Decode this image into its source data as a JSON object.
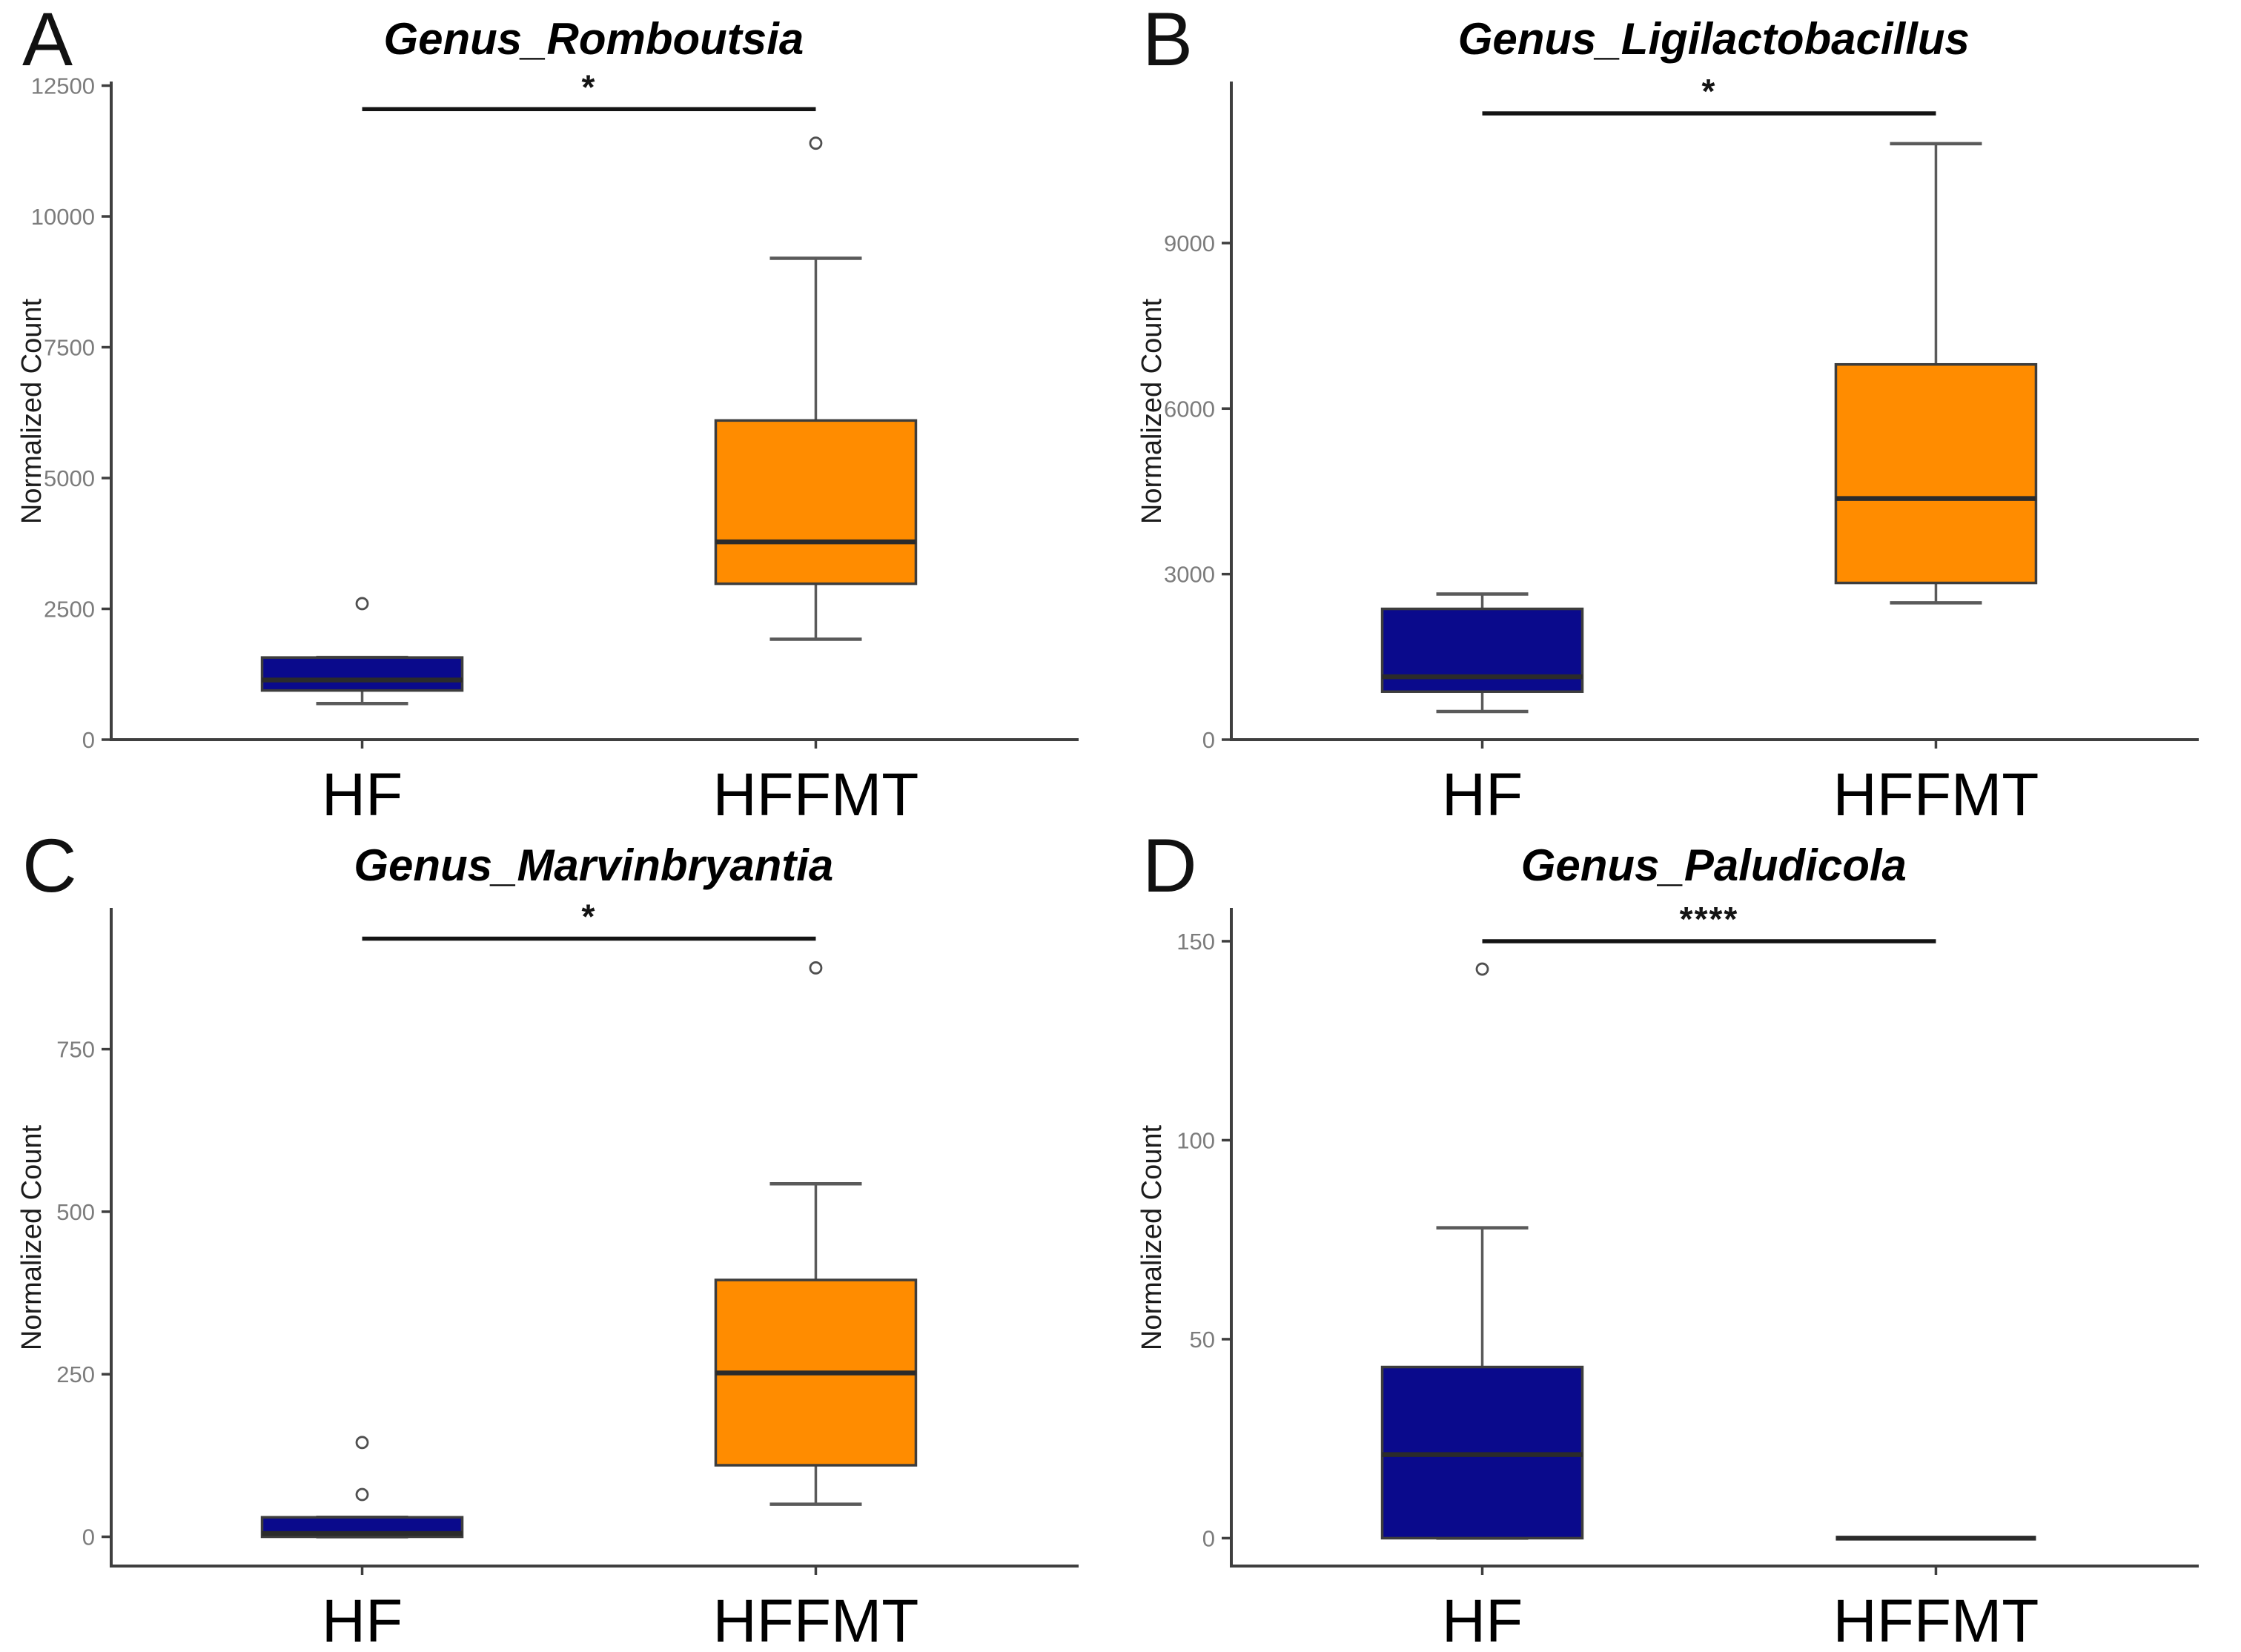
{
  "figure": {
    "ylabel": "Normalized Count",
    "categories": [
      "HF",
      "HFFMT"
    ],
    "style": {
      "hf_color": "#0A0A8C",
      "hffmt_color": "#FF8C00",
      "axis_color": "#3F3F3F",
      "tick_label_color": "#7C7C7C",
      "text_color": "#000000",
      "median_color": "#2B2B2B",
      "whisker_color": "#5A5A5A",
      "outlier_color": "#4F4F4F",
      "sig_color": "#141414"
    }
  },
  "chart_data": [
    {
      "panel": "A",
      "type": "box",
      "title": "Genus_Romboutsia",
      "ylabel": "Normalized Count",
      "xlabel": "",
      "categories": [
        "HF",
        "HFFMT"
      ],
      "yticks": [
        0,
        2500,
        5000,
        7500,
        10000,
        12500
      ],
      "ylim": [
        0,
        12550
      ],
      "legend": "none",
      "grid": false,
      "significance": {
        "label": "*",
        "bar_y": 12050
      },
      "series": [
        {
          "name": "HF",
          "color": "#0A0A8C",
          "whisker_low": 690,
          "q1": 940,
          "median": 1140,
          "q3": 1570,
          "whisker_high": 1570,
          "outliers": [
            2600
          ]
        },
        {
          "name": "HFFMT",
          "color": "#FF8C00",
          "whisker_low": 1920,
          "q1": 2980,
          "median": 3780,
          "q3": 6100,
          "whisker_high": 9200,
          "outliers": [
            11400
          ]
        }
      ]
    },
    {
      "panel": "B",
      "type": "box",
      "title": "Genus_Ligilactobacillus",
      "ylabel": "Normalized Count",
      "xlabel": "",
      "categories": [
        "HF",
        "HFFMT"
      ],
      "yticks": [
        0,
        3000,
        6000,
        9000
      ],
      "ylim": [
        0,
        11900
      ],
      "legend": "none",
      "grid": false,
      "significance": {
        "label": "*",
        "bar_y": 11350
      },
      "series": [
        {
          "name": "HF",
          "color": "#0A0A8C",
          "whisker_low": 510,
          "q1": 870,
          "median": 1140,
          "q3": 2370,
          "whisker_high": 2640,
          "outliers": []
        },
        {
          "name": "HFFMT",
          "color": "#FF8C00",
          "whisker_low": 2480,
          "q1": 2840,
          "median": 4370,
          "q3": 6800,
          "whisker_high": 10800,
          "outliers": []
        }
      ]
    },
    {
      "panel": "C",
      "type": "box",
      "title": "Genus_Marvinbryantia",
      "ylabel": "Normalized Count",
      "xlabel": "",
      "categories": [
        "HF",
        "HFFMT"
      ],
      "yticks": [
        0,
        250,
        500,
        750
      ],
      "ylim": [
        -45,
        965
      ],
      "legend": "none",
      "grid": false,
      "significance": {
        "label": "*",
        "bar_y": 920
      },
      "series": [
        {
          "name": "HF",
          "color": "#0A0A8C",
          "whisker_low": 0,
          "q1": 0,
          "median": 5,
          "q3": 30,
          "whisker_high": 30,
          "outliers": [
            65,
            145
          ]
        },
        {
          "name": "HFFMT",
          "color": "#FF8C00",
          "whisker_low": 50,
          "q1": 110,
          "median": 252,
          "q3": 395,
          "whisker_high": 543,
          "outliers": [
            875
          ]
        }
      ]
    },
    {
      "panel": "D",
      "type": "box",
      "title": "Genus_Paludicola",
      "ylabel": "Normalized Count",
      "xlabel": "",
      "categories": [
        "HF",
        "HFFMT"
      ],
      "yticks": [
        0,
        50,
        100,
        150
      ],
      "ylim": [
        -7,
        158
      ],
      "legend": "none",
      "grid": false,
      "significance": {
        "label": "****",
        "bar_y": 150
      },
      "series": [
        {
          "name": "HF",
          "color": "#0A0A8C",
          "whisker_low": 0,
          "q1": 0,
          "median": 21,
          "q3": 43,
          "whisker_high": 78,
          "outliers": [
            143
          ]
        },
        {
          "name": "HFFMT",
          "color": "#FF8C00",
          "whisker_low": 0,
          "q1": 0,
          "median": 0,
          "q3": 0,
          "whisker_high": 0,
          "outliers": []
        }
      ]
    }
  ]
}
